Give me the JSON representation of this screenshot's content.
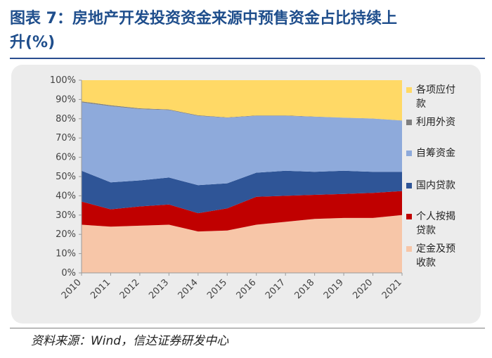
{
  "title": {
    "line1": "图表 7：房地产开发投资资金来源中预售资金占比持续上",
    "line2": "升(%)"
  },
  "source": "资料来源：Wind，信达证券研发中心",
  "chart_data": {
    "type": "area",
    "stacked": true,
    "categories": [
      "2010",
      "2011",
      "2012",
      "2013",
      "2014",
      "2015",
      "2016",
      "2017",
      "2018",
      "2019",
      "2020",
      "2021"
    ],
    "ylim": [
      0,
      100
    ],
    "yticks": [
      "0%",
      "10%",
      "20%",
      "30%",
      "40%",
      "50%",
      "60%",
      "70%",
      "80%",
      "90%",
      "100%"
    ],
    "series": [
      {
        "name": "定金及预收款",
        "color": "#f7c6a8",
        "values": [
          25,
          24,
          24.5,
          25,
          21.5,
          22,
          25,
          26.5,
          28,
          28.5,
          28.5,
          30
        ]
      },
      {
        "name": "个人按揭贷款",
        "color": "#c00000",
        "values": [
          12,
          9,
          10,
          10.5,
          9.5,
          11.5,
          14.5,
          13.5,
          12.5,
          12.5,
          13,
          12.5
        ]
      },
      {
        "name": "国内贷款",
        "color": "#2f5597",
        "values": [
          16,
          14,
          13.5,
          14,
          14.5,
          13,
          12.5,
          13,
          12,
          12,
          11,
          10
        ]
      },
      {
        "name": "自筹资金",
        "color": "#8eaadb",
        "values": [
          35.5,
          39.5,
          37,
          35,
          36,
          34,
          29.5,
          28.5,
          28.5,
          27.5,
          27.5,
          26.5
        ]
      },
      {
        "name": "利用外资",
        "color": "#7f7f7f",
        "values": [
          0.5,
          0.5,
          0.4,
          0.3,
          0.3,
          0.2,
          0.2,
          0.2,
          0.1,
          0.1,
          0.1,
          0.1
        ]
      },
      {
        "name": "各项应付款",
        "color": "#ffd966",
        "values": [
          11,
          13,
          14.6,
          15.2,
          18.2,
          19.3,
          18.3,
          18.3,
          18.9,
          19.4,
          19.9,
          20.9
        ]
      }
    ],
    "legend": {
      "position": "right",
      "labels": [
        "各项应付",
        "款",
        "利用外资",
        "自筹资金",
        "国内贷款",
        "个人按揭",
        "贷款",
        "定金及预",
        "收款"
      ]
    }
  }
}
